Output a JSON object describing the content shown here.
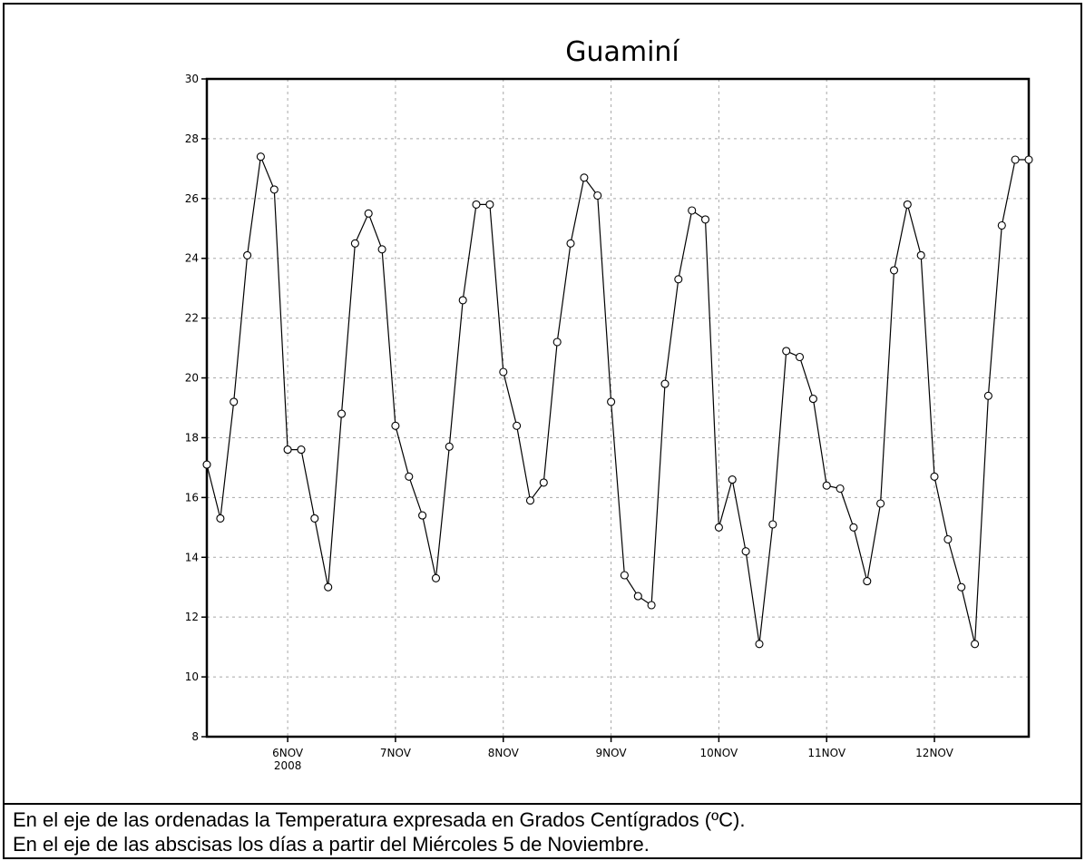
{
  "chart_data": {
    "type": "line",
    "title": "Guaminí",
    "xlabel": "",
    "ylabel": "",
    "ylim": [
      8,
      30
    ],
    "yticks": [
      8,
      10,
      12,
      14,
      16,
      18,
      20,
      22,
      24,
      26,
      28,
      30
    ],
    "xlim": [
      "2008-11-05T06:00",
      "2008-11-12T21:00"
    ],
    "xtick_positions": [
      "2008-11-06",
      "2008-11-07",
      "2008-11-08",
      "2008-11-09",
      "2008-11-10",
      "2008-11-11",
      "2008-11-12"
    ],
    "xtick_labels": [
      "6NOV",
      "7NOV",
      "8NOV",
      "9NOV",
      "10NOV",
      "11NOV",
      "12NOV"
    ],
    "xtick_sublabel": "2008",
    "grid": true,
    "series": [
      {
        "marker": "circle",
        "x": [
          "2008-11-05T06:00",
          "2008-11-05T09:00",
          "2008-11-05T12:00",
          "2008-11-05T15:00",
          "2008-11-05T18:00",
          "2008-11-05T21:00",
          "2008-11-06T00:00",
          "2008-11-06T03:00",
          "2008-11-06T06:00",
          "2008-11-06T09:00",
          "2008-11-06T12:00",
          "2008-11-06T15:00",
          "2008-11-06T18:00",
          "2008-11-06T21:00",
          "2008-11-07T00:00",
          "2008-11-07T03:00",
          "2008-11-07T06:00",
          "2008-11-07T09:00",
          "2008-11-07T12:00",
          "2008-11-07T15:00",
          "2008-11-07T18:00",
          "2008-11-07T21:00",
          "2008-11-08T00:00",
          "2008-11-08T03:00",
          "2008-11-08T06:00",
          "2008-11-08T09:00",
          "2008-11-08T12:00",
          "2008-11-08T15:00",
          "2008-11-08T18:00",
          "2008-11-08T21:00",
          "2008-11-09T00:00",
          "2008-11-09T03:00",
          "2008-11-09T06:00",
          "2008-11-09T09:00",
          "2008-11-09T12:00",
          "2008-11-09T15:00",
          "2008-11-09T18:00",
          "2008-11-09T21:00",
          "2008-11-10T00:00",
          "2008-11-10T03:00",
          "2008-11-10T06:00",
          "2008-11-10T09:00",
          "2008-11-10T12:00",
          "2008-11-10T15:00",
          "2008-11-10T18:00",
          "2008-11-10T21:00",
          "2008-11-11T00:00",
          "2008-11-11T03:00",
          "2008-11-11T06:00",
          "2008-11-11T09:00",
          "2008-11-11T12:00",
          "2008-11-11T15:00",
          "2008-11-11T18:00",
          "2008-11-11T21:00",
          "2008-11-12T00:00",
          "2008-11-12T03:00",
          "2008-11-12T06:00",
          "2008-11-12T09:00",
          "2008-11-12T12:00",
          "2008-11-12T15:00",
          "2008-11-12T18:00",
          "2008-11-12T21:00"
        ],
        "y": [
          17.1,
          15.3,
          19.2,
          24.1,
          27.4,
          26.3,
          17.6,
          17.6,
          15.3,
          13.0,
          18.8,
          24.5,
          25.5,
          24.3,
          18.4,
          16.7,
          15.4,
          13.3,
          17.7,
          22.6,
          25.8,
          25.8,
          20.2,
          18.4,
          15.9,
          16.5,
          21.2,
          24.5,
          26.7,
          26.1,
          19.2,
          13.4,
          12.7,
          12.4,
          19.8,
          23.3,
          25.6,
          25.3,
          15.0,
          16.6,
          14.2,
          11.1,
          15.1,
          20.9,
          20.7,
          19.3,
          16.4,
          16.3,
          15.0,
          13.2,
          15.8,
          23.6,
          25.8,
          24.1,
          16.7,
          14.6,
          13.0,
          11.1,
          19.4,
          25.1,
          27.3,
          27.3
        ]
      }
    ]
  },
  "caption": {
    "line1": "En el eje de las ordenadas la Temperatura expresada en Grados Centígrados (ºC).",
    "line2": "En el eje de las abscisas los días a partir del Miércoles 5 de Noviembre."
  }
}
